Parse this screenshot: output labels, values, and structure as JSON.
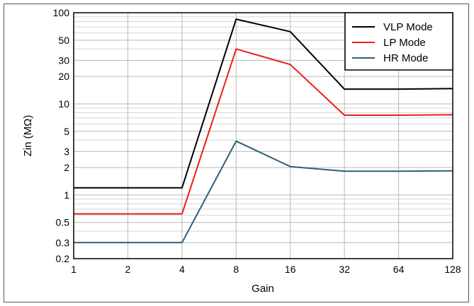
{
  "chart_data": {
    "type": "line",
    "title": "",
    "xlabel": "Gain",
    "ylabel": "Zin (MΩ)",
    "x_scale": "log2",
    "y_scale": "log10",
    "categories": [
      "1",
      "2",
      "4",
      "8",
      "16",
      "32",
      "64",
      "128"
    ],
    "x": [
      1,
      2,
      4,
      8,
      16,
      32,
      64,
      128
    ],
    "ylim": [
      0.2,
      100
    ],
    "y_ticks": [
      0.2,
      0.3,
      0.5,
      1,
      2,
      3,
      5,
      10,
      20,
      30,
      50,
      100
    ],
    "y_tick_labels": [
      "0.2",
      "0.3",
      "0.5",
      "1",
      "2",
      "3",
      "5",
      "10",
      "20",
      "30",
      "50",
      "100"
    ],
    "grid": true,
    "legend_position": "top-right",
    "series": [
      {
        "name": "VLP Mode",
        "color": "#000000",
        "values": [
          1.2,
          1.2,
          1.2,
          85,
          62,
          14.5,
          14.5,
          14.7
        ]
      },
      {
        "name": "LP Mode",
        "color": "#ee1c1c",
        "values": [
          0.62,
          0.62,
          0.62,
          40,
          27,
          7.5,
          7.5,
          7.6
        ]
      },
      {
        "name": "HR Mode",
        "color": "#2e5f78",
        "values": [
          0.3,
          0.3,
          0.3,
          3.9,
          2.05,
          1.82,
          1.82,
          1.84
        ]
      }
    ]
  }
}
